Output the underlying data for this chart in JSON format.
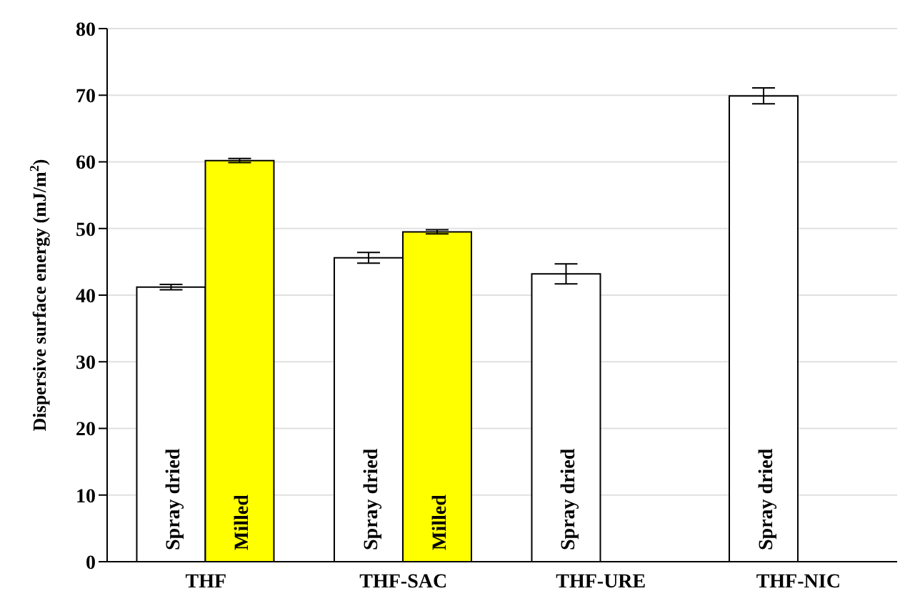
{
  "chart_data": {
    "type": "bar",
    "ylabel": "Dispersive surface energy (mJ/m$^{2}$)",
    "categories": [
      "THF",
      "THF-SAC",
      "THF-URE",
      "THF-NIC"
    ],
    "series": [
      {
        "name": "Spray dried",
        "color": "#ffffff",
        "values": [
          41.2,
          45.6,
          43.2,
          69.9
        ],
        "errors": [
          0.4,
          0.8,
          1.5,
          1.2
        ]
      },
      {
        "name": "Milled",
        "color": "#ffff00",
        "values": [
          60.2,
          49.5,
          null,
          null
        ],
        "errors": [
          0.3,
          0.3,
          null,
          null
        ]
      }
    ],
    "ylim": [
      0,
      80
    ],
    "yticks": [
      0,
      10,
      20,
      30,
      40,
      50,
      60,
      70,
      80
    ],
    "grid": "y",
    "legend": false
  }
}
